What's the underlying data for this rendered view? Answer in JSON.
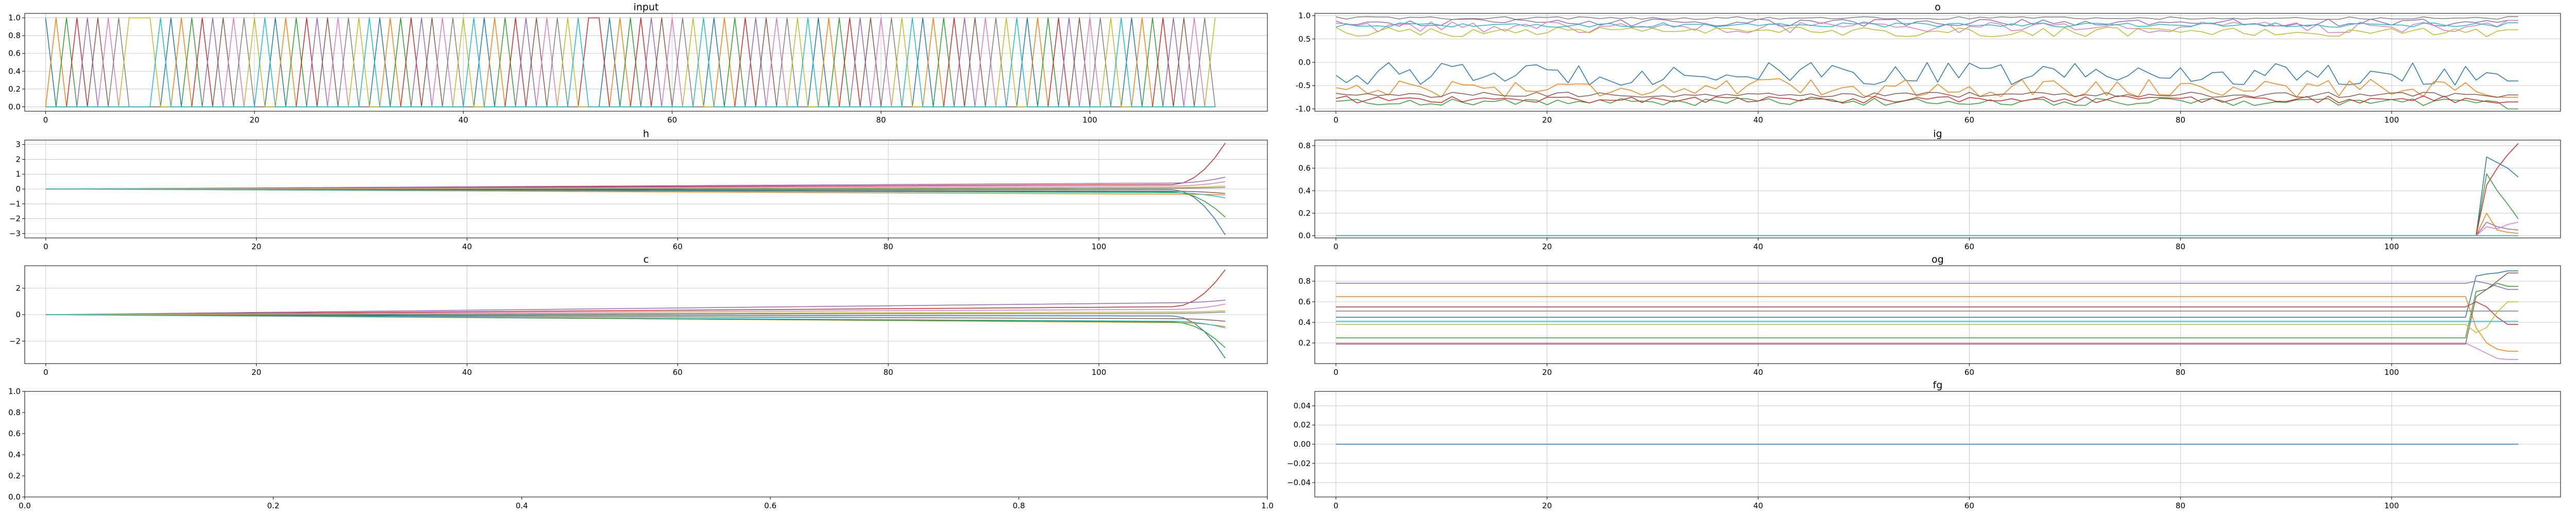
{
  "palette": [
    "#1f77b4",
    "#ff7f0e",
    "#2ca02c",
    "#d62728",
    "#9467bd",
    "#8c564b",
    "#e377c2",
    "#7f7f7f",
    "#bcbd22",
    "#17becf"
  ],
  "chart_data": [
    {
      "id": "input",
      "type": "line",
      "title": "input",
      "grid": true,
      "xlim": [
        -2,
        117
      ],
      "ylim": [
        -0.05,
        1.05
      ],
      "xticks": [
        0,
        20,
        40,
        60,
        80,
        100
      ],
      "xtick_labels": [
        "0",
        "20",
        "40",
        "60",
        "80",
        "100"
      ],
      "yticks": [
        0.0,
        0.2,
        0.4,
        0.6,
        0.8,
        1.0
      ],
      "ytick_labels": [
        "0.0",
        "0.2",
        "0.4",
        "0.6",
        "0.8",
        "1.0"
      ],
      "x_range": [
        0,
        112
      ],
      "series_count": 10,
      "generator": "one_hot_tokens",
      "token_sequence": [
        0,
        1,
        2,
        3,
        4,
        5,
        6,
        7,
        8,
        8,
        8,
        9,
        0,
        1,
        2,
        3,
        4,
        5,
        6,
        7,
        8,
        9,
        0,
        1,
        2,
        3,
        4,
        5,
        6,
        7,
        8,
        9,
        0,
        1,
        2,
        3,
        4,
        5,
        6,
        7,
        8,
        9,
        0,
        1,
        2,
        3,
        4,
        5,
        6,
        7,
        8,
        9,
        3,
        3,
        0,
        1,
        2,
        3,
        4,
        5,
        6,
        7,
        8,
        9,
        0,
        1,
        2,
        3,
        4,
        5,
        6,
        7,
        8,
        9,
        0,
        1,
        2,
        3,
        4,
        5,
        6,
        7,
        8,
        9,
        0,
        1,
        2,
        3,
        4,
        5,
        6,
        7,
        8,
        9,
        0,
        1,
        2,
        3,
        4,
        5,
        6,
        7,
        8,
        9,
        0,
        1,
        2,
        3,
        4,
        5,
        6,
        7,
        8
      ]
    },
    {
      "id": "o",
      "type": "line",
      "title": "o",
      "grid": true,
      "xlim": [
        -2,
        116
      ],
      "ylim": [
        -1.05,
        1.05
      ],
      "xticks": [
        0,
        20,
        40,
        60,
        80,
        100
      ],
      "xtick_labels": [
        "0",
        "20",
        "40",
        "60",
        "80",
        "100"
      ],
      "yticks": [
        -1.0,
        -0.5,
        0.0,
        0.5,
        1.0
      ],
      "ytick_labels": [
        "-1.0",
        "-0.5",
        "0.0",
        "0.5",
        "1.0"
      ],
      "x_range": [
        0,
        112
      ],
      "series_count": 10,
      "generator": "noisy_bands",
      "levels": [
        -0.25,
        -0.55,
        -0.85,
        -0.8,
        0.85,
        -0.7,
        0.75,
        0.95,
        0.65,
        0.8
      ],
      "noise": [
        0.25,
        0.2,
        0.08,
        0.08,
        0.08,
        0.06,
        0.12,
        0.03,
        0.1,
        0.05
      ],
      "end_levels": [
        -0.4,
        -0.75,
        -1.0,
        -0.85,
        0.9,
        -0.7,
        0.9,
        0.98,
        0.7,
        0.85
      ]
    },
    {
      "id": "h",
      "type": "line",
      "title": "h",
      "grid": true,
      "xlim": [
        -2,
        116
      ],
      "ylim": [
        -3.3,
        3.3
      ],
      "xticks": [
        0,
        20,
        40,
        60,
        80,
        100
      ],
      "xtick_labels": [
        "0",
        "20",
        "40",
        "60",
        "80",
        "100"
      ],
      "yticks": [
        -3,
        -2,
        -1,
        0,
        1,
        2,
        3
      ],
      "ytick_labels": [
        "−3",
        "−2",
        "−1",
        "0",
        "1",
        "2",
        "3"
      ],
      "x_range": [
        0,
        112
      ],
      "series_count": 10,
      "generator": "drift_then_branch",
      "drift_at_107": [
        -0.05,
        -0.35,
        -0.2,
        0.3,
        0.4,
        -0.15,
        0.2,
        0.05,
        0.1,
        -0.25
      ],
      "end_values": [
        -3.1,
        -0.4,
        -1.9,
        3.1,
        0.8,
        -0.3,
        0.5,
        0.1,
        0.2,
        -0.6
      ]
    },
    {
      "id": "ig",
      "type": "line",
      "title": "ig",
      "grid": true,
      "xlim": [
        -2,
        116
      ],
      "ylim": [
        -0.02,
        0.85
      ],
      "xticks": [
        0,
        20,
        40,
        60,
        80,
        100
      ],
      "xtick_labels": [
        "0",
        "20",
        "40",
        "60",
        "80",
        "100"
      ],
      "yticks": [
        0.0,
        0.2,
        0.4,
        0.6,
        0.8
      ],
      "ytick_labels": [
        "0.0",
        "0.2",
        "0.4",
        "0.6",
        "0.8"
      ],
      "x_range": [
        0,
        112
      ],
      "series_count": 10,
      "generator": "flat_then_spike",
      "base": 0.0,
      "spike_start": 108,
      "spike_values": {
        "0": [
          0.0,
          0.7,
          0.65,
          0.6,
          0.52
        ],
        "1": [
          0.0,
          0.2,
          0.05,
          0.03,
          0.02
        ],
        "2": [
          0.0,
          0.55,
          0.4,
          0.28,
          0.15
        ],
        "3": [
          0.0,
          0.45,
          0.6,
          0.72,
          0.82
        ],
        "4": [
          0.0,
          0.12,
          0.08,
          0.06,
          0.05
        ],
        "6": [
          0.0,
          0.08,
          0.06,
          0.1,
          0.12
        ]
      }
    },
    {
      "id": "c",
      "type": "line",
      "title": "c",
      "grid": true,
      "xlim": [
        -2,
        116
      ],
      "ylim": [
        -3.7,
        3.7
      ],
      "xticks": [
        0,
        20,
        40,
        60,
        80,
        100
      ],
      "xtick_labels": [
        "0",
        "20",
        "40",
        "60",
        "80",
        "100"
      ],
      "yticks": [
        -2,
        0,
        2
      ],
      "ytick_labels": [
        "−2",
        "0",
        "2"
      ],
      "x_range": [
        0,
        112
      ],
      "series_count": 10,
      "generator": "drift_then_branch",
      "drift_at_107": [
        -0.1,
        -0.6,
        -0.55,
        0.6,
        0.9,
        -0.3,
        0.4,
        0.1,
        0.2,
        -0.5
      ],
      "end_values": [
        -3.3,
        -0.9,
        -2.5,
        3.4,
        1.1,
        -0.5,
        0.8,
        0.2,
        0.3,
        -1.0
      ]
    },
    {
      "id": "og",
      "type": "line",
      "title": "og",
      "grid": true,
      "xlim": [
        -2,
        116
      ],
      "ylim": [
        0.0,
        0.95
      ],
      "xticks": [
        0,
        20,
        40,
        60,
        80,
        100
      ],
      "xtick_labels": [
        "0",
        "20",
        "40",
        "60",
        "80",
        "100"
      ],
      "yticks": [
        0.2,
        0.4,
        0.6,
        0.8
      ],
      "ytick_labels": [
        "0.2",
        "0.4",
        "0.6",
        "0.8"
      ],
      "x_range": [
        0,
        112
      ],
      "series_count": 10,
      "generator": "flat_then_spike",
      "spike_start": 107,
      "base_values": [
        0.45,
        0.65,
        0.25,
        0.55,
        0.78,
        0.19,
        0.2,
        0.51,
        0.38,
        0.41
      ],
      "spike_values": {
        "0": [
          0.45,
          0.85,
          0.87,
          0.88,
          0.9
        ],
        "1": [
          0.65,
          0.35,
          0.2,
          0.14,
          0.12
        ],
        "2": [
          0.25,
          0.7,
          0.72,
          0.78,
          0.75
        ],
        "3": [
          0.55,
          0.6,
          0.55,
          0.45,
          0.38
        ],
        "4": [
          0.78,
          0.8,
          0.78,
          0.75,
          0.72
        ],
        "5": [
          0.19,
          0.65,
          0.72,
          0.8,
          0.88
        ],
        "6": [
          0.2,
          0.15,
          0.1,
          0.05,
          0.04
        ],
        "8": [
          0.38,
          0.3,
          0.35,
          0.5,
          0.6
        ]
      }
    },
    {
      "id": "empty",
      "type": "line",
      "title": "",
      "grid": false,
      "xlim": [
        0.0,
        1.0
      ],
      "ylim": [
        0.0,
        1.0
      ],
      "xticks": [
        0.0,
        0.2,
        0.4,
        0.6,
        0.8,
        1.0
      ],
      "xtick_labels": [
        "0.0",
        "0.2",
        "0.4",
        "0.6",
        "0.8",
        "1.0"
      ],
      "yticks": [
        0.0,
        0.2,
        0.4,
        0.6,
        0.8,
        1.0
      ],
      "ytick_labels": [
        "0.0",
        "0.2",
        "0.4",
        "0.6",
        "0.8",
        "1.0"
      ],
      "series_count": 0
    },
    {
      "id": "fg",
      "type": "line",
      "title": "fg",
      "grid": true,
      "xlim": [
        -2,
        116
      ],
      "ylim": [
        -0.055,
        0.055
      ],
      "xticks": [
        0,
        20,
        40,
        60,
        80,
        100
      ],
      "xtick_labels": [
        "0",
        "20",
        "40",
        "60",
        "80",
        "100"
      ],
      "yticks": [
        -0.04,
        -0.02,
        0.0,
        0.02,
        0.04
      ],
      "ytick_labels": [
        "−0.04",
        "−0.02",
        "0.00",
        "0.02",
        "0.04"
      ],
      "x_range": [
        0,
        112
      ],
      "series_count": 1,
      "generator": "constant",
      "value": 0.0
    }
  ]
}
